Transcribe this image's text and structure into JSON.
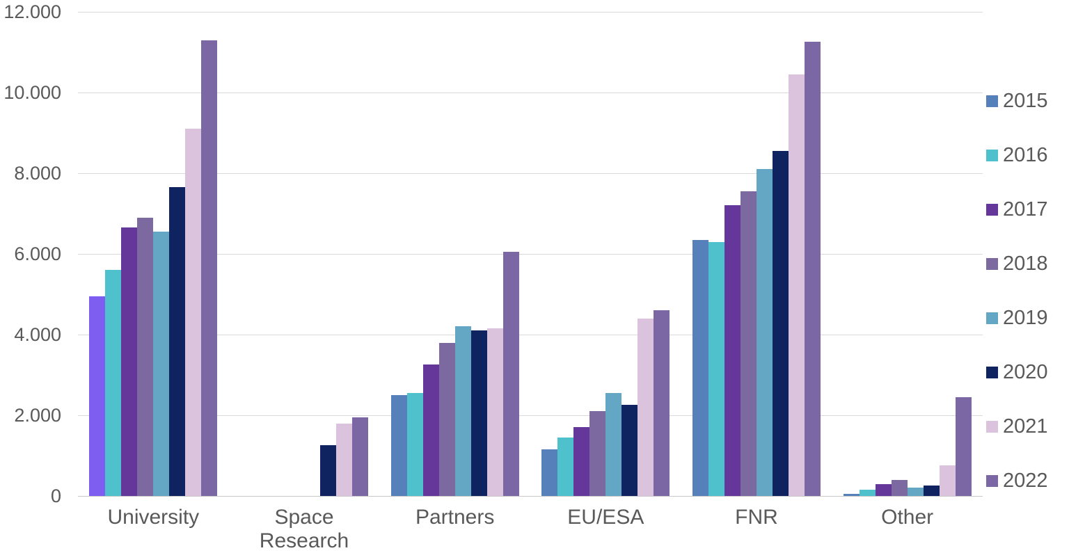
{
  "chart_data": {
    "type": "bar",
    "title": "",
    "xlabel": "",
    "ylabel": "",
    "categories": [
      "University",
      "Space Research",
      "Partners",
      "EU/ESA",
      "FNR",
      "Other"
    ],
    "series": [
      {
        "name": "2015",
        "color": "#5580B9",
        "values": [
          4950,
          0,
          2500,
          1150,
          6350,
          50
        ]
      },
      {
        "name": "2016",
        "color": "#4FC1CC",
        "values": [
          5600,
          0,
          2550,
          1450,
          6300,
          150
        ]
      },
      {
        "name": "2017",
        "color": "#66379A",
        "values": [
          6650,
          0,
          3250,
          1700,
          7200,
          300
        ]
      },
      {
        "name": "2018",
        "color": "#7C699F",
        "values": [
          6900,
          0,
          3800,
          2100,
          7550,
          400
        ]
      },
      {
        "name": "2019",
        "color": "#63A7C4",
        "values": [
          6550,
          0,
          4200,
          2550,
          8100,
          200
        ]
      },
      {
        "name": "2020",
        "color": "#0F2360",
        "values": [
          7650,
          1250,
          4100,
          2250,
          8550,
          250
        ]
      },
      {
        "name": "2021",
        "color": "#DCC3DD",
        "values": [
          9100,
          1800,
          4150,
          4400,
          10450,
          750
        ]
      },
      {
        "name": "2022",
        "color": "#7B67A3",
        "values": [
          11300,
          1950,
          6050,
          4600,
          11250,
          2450
        ]
      }
    ],
    "highlight": {
      "category": "University",
      "series": "2015",
      "color": "#7E5EF0"
    },
    "ylim": [
      0,
      12000
    ],
    "ytick_step": 2000,
    "ytick_labels": [
      "0",
      "2.000",
      "4.000",
      "6.000",
      "8.000",
      "10.000",
      "12.000"
    ],
    "grid": true,
    "legend_position": "right",
    "legend_labels": [
      "2015",
      "2016",
      "2017",
      "2018",
      "2019",
      "2020",
      "2021",
      "2022"
    ],
    "colors": {
      "grid": "#d9d9d9",
      "axis_text": "#595959",
      "background": "#ffffff"
    }
  }
}
